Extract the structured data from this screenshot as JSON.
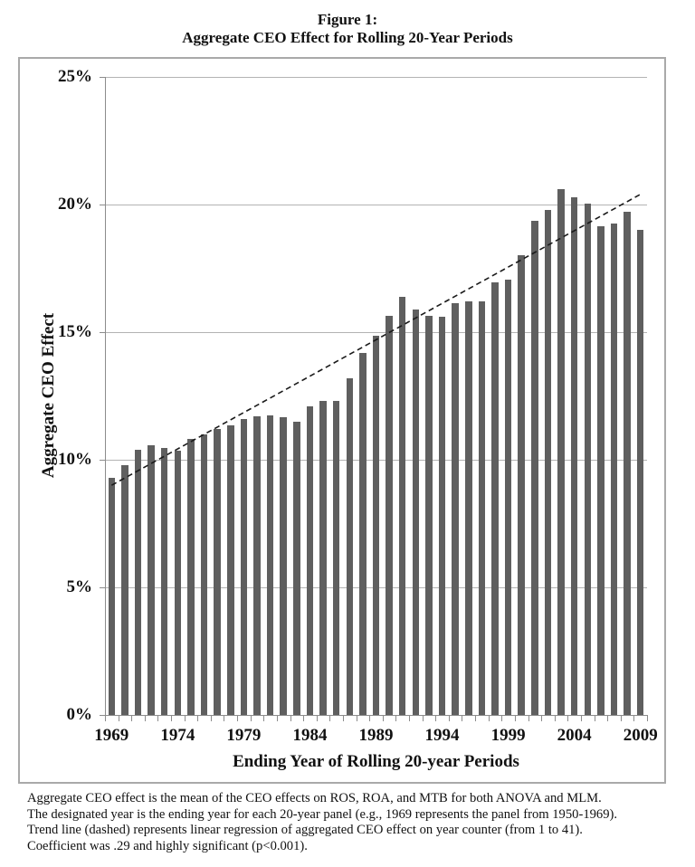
{
  "title": {
    "line1": "Figure 1:",
    "line2": "Aggregate CEO Effect for Rolling 20-Year Periods"
  },
  "chart_data": {
    "type": "bar",
    "title": "Figure 1: Aggregate CEO Effect for Rolling 20-Year Periods",
    "categories": [
      1969,
      1970,
      1971,
      1972,
      1973,
      1974,
      1975,
      1976,
      1977,
      1978,
      1979,
      1980,
      1981,
      1982,
      1983,
      1984,
      1985,
      1986,
      1987,
      1988,
      1989,
      1990,
      1991,
      1992,
      1993,
      1994,
      1995,
      1996,
      1997,
      1998,
      1999,
      2000,
      2001,
      2002,
      2003,
      2004,
      2005,
      2006,
      2007,
      2008,
      2009
    ],
    "values": [
      9.3,
      9.8,
      10.4,
      10.55,
      10.45,
      10.35,
      10.8,
      11.0,
      11.2,
      11.35,
      11.6,
      11.7,
      11.75,
      11.65,
      11.5,
      12.1,
      12.3,
      12.3,
      13.2,
      14.2,
      14.85,
      15.65,
      16.4,
      15.9,
      15.65,
      15.6,
      16.15,
      16.2,
      16.2,
      16.95,
      17.05,
      18.0,
      19.35,
      19.8,
      20.6,
      20.3,
      20.05,
      19.15,
      19.25,
      19.7,
      19.0
    ],
    "xlabel": "Ending Year of Rolling 20-year Periods",
    "ylabel": "Aggregate CEO Effect",
    "ylim": [
      0,
      25
    ],
    "y_tick_step": 5,
    "y_tick_labels": [
      "0%",
      "5%",
      "10%",
      "15%",
      "20%",
      "25%"
    ],
    "x_tick_label_every": 5,
    "grid": true,
    "legend": "none",
    "trend_line": {
      "style": "dashed",
      "start_value": 9.0,
      "end_value": 20.4,
      "color": "#1a1a1a"
    },
    "bar_color": "#5f5f5f",
    "gridline_color": "#b3b3b3",
    "axis_color": "#8c8c8c"
  },
  "footnote": {
    "lines": [
      "Aggregate CEO effect is the mean of the CEO effects on ROS, ROA, and MTB for both ANOVA and MLM.",
      "The designated year is the ending year for each 20-year panel (e.g., 1969 represents the panel from 1950-1969).",
      "Trend line (dashed) represents linear regression of aggregated CEO effect on year counter (from 1 to 41).",
      "Coefficient was .29 and highly significant (p<0.001)."
    ]
  }
}
